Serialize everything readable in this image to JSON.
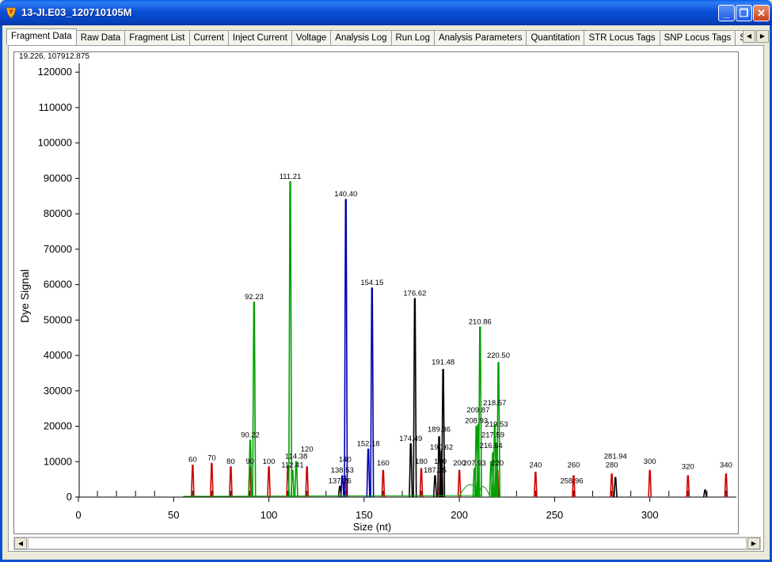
{
  "window": {
    "title": "13-JI.E03_120710105M"
  },
  "tabs": [
    {
      "label": "Fragment Data",
      "active": true
    },
    {
      "label": "Raw Data"
    },
    {
      "label": "Fragment List"
    },
    {
      "label": "Current"
    },
    {
      "label": "Inject Current"
    },
    {
      "label": "Voltage"
    },
    {
      "label": "Analysis Log"
    },
    {
      "label": "Run Log"
    },
    {
      "label": "Analysis Parameters"
    },
    {
      "label": "Quantitation"
    },
    {
      "label": "STR Locus Tags"
    },
    {
      "label": "SNP Locus Tags"
    },
    {
      "label": "Size Calibr"
    }
  ],
  "cursor_readout": "19.226, 107912.875",
  "colors": {
    "red": "#cc0000",
    "green": "#00a000",
    "blue": "#0000b0",
    "black": "#000000",
    "purple": "#7030a0"
  },
  "chart_data": {
    "type": "line",
    "xlabel": "Size (nt)",
    "ylabel": "Dye Signal",
    "xlim": [
      0,
      345
    ],
    "ylim": [
      0,
      122500
    ],
    "x_ticks": [
      0,
      50,
      100,
      150,
      200,
      250,
      300
    ],
    "y_ticks": [
      0,
      10000,
      20000,
      30000,
      40000,
      50000,
      60000,
      70000,
      80000,
      90000,
      100000,
      110000,
      120000
    ],
    "series": [
      {
        "color": "red",
        "peaks": [
          [
            60,
            9000
          ],
          [
            70,
            9500
          ],
          [
            80,
            8500
          ],
          [
            90,
            8500
          ],
          [
            100,
            8500
          ],
          [
            110,
            8800
          ],
          [
            120,
            8500
          ],
          [
            140,
            6000
          ],
          [
            160,
            7500
          ],
          [
            180,
            8000
          ],
          [
            190,
            8000
          ],
          [
            200,
            7500
          ],
          [
            220,
            7500
          ],
          [
            240,
            7000
          ],
          [
            260,
            6000
          ],
          [
            280,
            6500
          ],
          [
            300,
            7500
          ],
          [
            320,
            6000
          ],
          [
            340,
            6500
          ]
        ]
      },
      {
        "color": "green",
        "peaks": [
          [
            90.22,
            16000
          ],
          [
            92.23,
            55000
          ],
          [
            111.21,
            89000
          ],
          [
            112.41,
            7500
          ],
          [
            114.38,
            10000
          ],
          [
            207.93,
            8000
          ],
          [
            208.93,
            20000
          ],
          [
            209.87,
            20500
          ],
          [
            210.86,
            48000
          ],
          [
            216.64,
            10000
          ],
          [
            217.59,
            12500
          ],
          [
            218.57,
            20500
          ],
          [
            219.53,
            15000
          ],
          [
            220.5,
            38000
          ]
        ]
      },
      {
        "color": "blue",
        "peaks": [
          [
            138.53,
            6000
          ],
          [
            140.4,
            84000
          ],
          [
            152.18,
            13500
          ],
          [
            154.15,
            59000
          ]
        ]
      },
      {
        "color": "black",
        "peaks": [
          [
            137.26,
            3000
          ],
          [
            174.49,
            15000
          ],
          [
            176.62,
            56000
          ],
          [
            187.25,
            6000
          ],
          [
            189.36,
            17000
          ],
          [
            190.62,
            13000
          ],
          [
            191.48,
            36000
          ],
          [
            281.94,
            5500
          ],
          [
            329,
            2000
          ]
        ]
      }
    ],
    "labels": [
      {
        "x": 60,
        "y": 9000,
        "text": "60"
      },
      {
        "x": 70,
        "y": 9500,
        "text": "70"
      },
      {
        "x": 80,
        "y": 8500,
        "text": "80"
      },
      {
        "x": 90,
        "y": 8500,
        "text": "90"
      },
      {
        "x": 90.22,
        "y": 16000,
        "text": "90.22"
      },
      {
        "x": 92.23,
        "y": 55000,
        "text": "92.23"
      },
      {
        "x": 100,
        "y": 8500,
        "text": "100"
      },
      {
        "x": 111.21,
        "y": 89000,
        "text": "111.21"
      },
      {
        "x": 112.41,
        "y": 7500,
        "text": "112.41"
      },
      {
        "x": 114.38,
        "y": 10000,
        "text": "114.38"
      },
      {
        "x": 120,
        "y": 12000,
        "text": "120"
      },
      {
        "x": 137.26,
        "y": 3000,
        "text": "137.26"
      },
      {
        "x": 138.53,
        "y": 6000,
        "text": "138.53"
      },
      {
        "x": 140,
        "y": 9000,
        "text": "140"
      },
      {
        "x": 140.4,
        "y": 84000,
        "text": "140.40"
      },
      {
        "x": 152.18,
        "y": 13500,
        "text": "152.18"
      },
      {
        "x": 154.15,
        "y": 59000,
        "text": "154.15"
      },
      {
        "x": 160,
        "y": 8000,
        "text": "160"
      },
      {
        "x": 174.49,
        "y": 15000,
        "text": "174.49"
      },
      {
        "x": 176.62,
        "y": 56000,
        "text": "176.62"
      },
      {
        "x": 180,
        "y": 8500,
        "text": "180"
      },
      {
        "x": 187.25,
        "y": 6000,
        "text": "187.25"
      },
      {
        "x": 190,
        "y": 8500,
        "text": "190"
      },
      {
        "x": 189.36,
        "y": 17500,
        "text": "189.36"
      },
      {
        "x": 190.62,
        "y": 12500,
        "text": "190.62"
      },
      {
        "x": 191.48,
        "y": 36500,
        "text": "191.48"
      },
      {
        "x": 200,
        "y": 8000,
        "text": "200"
      },
      {
        "x": 207.93,
        "y": 8000,
        "text": "207.93"
      },
      {
        "x": 208.93,
        "y": 20000,
        "text": "208.93"
      },
      {
        "x": 209.87,
        "y": 23000,
        "text": "209.87"
      },
      {
        "x": 210.86,
        "y": 48000,
        "text": "210.86"
      },
      {
        "x": 216.64,
        "y": 13000,
        "text": "216.64"
      },
      {
        "x": 217.59,
        "y": 16000,
        "text": "217.59"
      },
      {
        "x": 218.57,
        "y": 25000,
        "text": "218.57"
      },
      {
        "x": 219.53,
        "y": 19000,
        "text": "219.53"
      },
      {
        "x": 220.5,
        "y": 38500,
        "text": "220.50"
      },
      {
        "x": 220,
        "y": 8000,
        "text": "220"
      },
      {
        "x": 240,
        "y": 7500,
        "text": "240"
      },
      {
        "x": 258.96,
        "y": 3000,
        "text": "258.96"
      },
      {
        "x": 260,
        "y": 7500,
        "text": "260"
      },
      {
        "x": 280,
        "y": 7500,
        "text": "280"
      },
      {
        "x": 281.94,
        "y": 10000,
        "text": "281.94"
      },
      {
        "x": 300,
        "y": 8500,
        "text": "300"
      },
      {
        "x": 320,
        "y": 7000,
        "text": "320"
      },
      {
        "x": 340,
        "y": 7500,
        "text": "340"
      }
    ]
  }
}
